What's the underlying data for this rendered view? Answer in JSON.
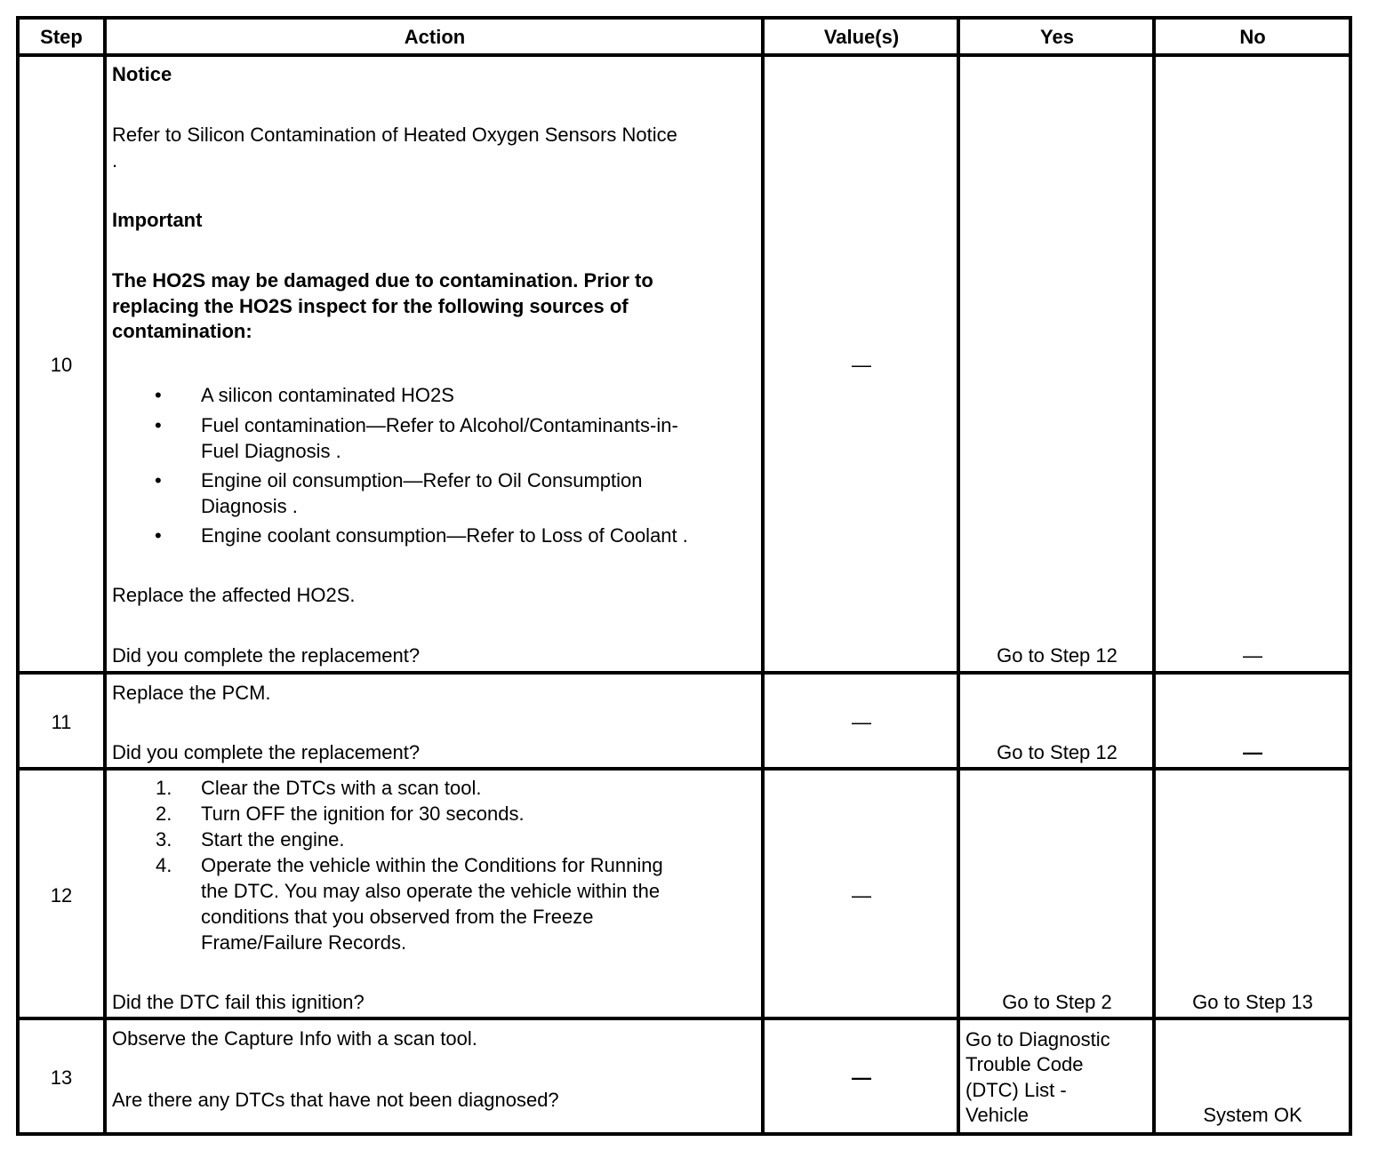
{
  "headers": {
    "step": "Step",
    "action": "Action",
    "values": "Value(s)",
    "yes": "Yes",
    "no": "No"
  },
  "rows": [
    {
      "step": "10",
      "notice_label": "Notice",
      "notice_text": "Refer to Silicon Contamination of Heated Oxygen Sensors Notice",
      "notice_period": ".",
      "important_label": "Important",
      "important_lines": [
        "The HO2S may be damaged due to contamination. Prior to",
        "replacing the HO2S inspect for the following sources of",
        "contamination:"
      ],
      "bullets": [
        [
          "A silicon contaminated HO2S"
        ],
        [
          "Fuel contamination—Refer to Alcohol/Contaminants-in-",
          "Fuel Diagnosis ."
        ],
        [
          "Engine oil consumption—Refer to Oil Consumption",
          "Diagnosis ."
        ],
        [
          "Engine coolant consumption—Refer to Loss of Coolant ."
        ]
      ],
      "instruction": "Replace the affected HO2S.",
      "question": "Did you complete the replacement?",
      "value": "—",
      "yes": "Go to Step 12",
      "no": "—"
    },
    {
      "step": "11",
      "instruction": "Replace the PCM.",
      "question": "Did you complete the replacement?",
      "value": "—",
      "yes": "Go to Step 12",
      "no": "—"
    },
    {
      "step": "12",
      "steps": [
        [
          "1.",
          "Clear the DTCs with a scan tool."
        ],
        [
          "2.",
          "Turn OFF the ignition for 30 seconds."
        ],
        [
          "3.",
          "Start the engine."
        ],
        [
          "4.",
          "Operate the vehicle within the Conditions for Running"
        ],
        [
          "",
          "the DTC. You may also operate the vehicle within the"
        ],
        [
          "",
          "conditions that you observed from the Freeze"
        ],
        [
          "",
          "Frame/Failure Records."
        ]
      ],
      "question": "Did the DTC fail this ignition?",
      "value": "—",
      "yes": "Go to Step 2",
      "no": "Go to Step 13"
    },
    {
      "step": "13",
      "instruction": "Observe the Capture Info with a scan tool.",
      "question": "Are there any DTCs that have not been diagnosed?",
      "value": "—",
      "yes_lines": [
        "Go to Diagnostic",
        "Trouble Code",
        "(DTC) List -",
        "Vehicle"
      ],
      "no": "System OK"
    }
  ]
}
